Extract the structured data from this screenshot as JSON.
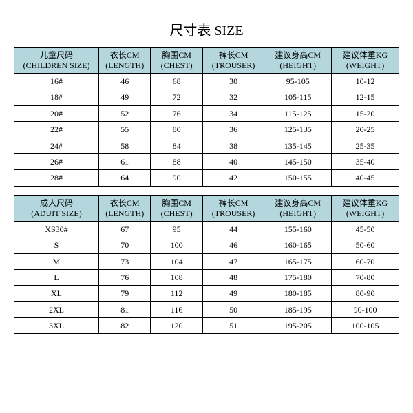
{
  "title": "尺寸表 SIZE",
  "header_bg": "#b3d7dd",
  "children": {
    "header": {
      "size": {
        "cn": "儿童尺码",
        "en": "(CHILDREN SIZE)"
      },
      "length": {
        "cn": "衣长CM",
        "en": "(LENGTH)"
      },
      "chest": {
        "cn": "胸围CM",
        "en": "(CHEST)"
      },
      "trouser": {
        "cn": "裤长CM",
        "en": "(TROUSER)"
      },
      "height": {
        "cn": "建议身高CM",
        "en": "(HEIGHT)"
      },
      "weight": {
        "cn": "建议体重KG",
        "en": "(WEIGHT)"
      }
    },
    "rows": [
      {
        "size": "16#",
        "length": "46",
        "chest": "68",
        "trouser": "30",
        "height": "95-105",
        "weight": "10-12"
      },
      {
        "size": "18#",
        "length": "49",
        "chest": "72",
        "trouser": "32",
        "height": "105-115",
        "weight": "12-15"
      },
      {
        "size": "20#",
        "length": "52",
        "chest": "76",
        "trouser": "34",
        "height": "115-125",
        "weight": "15-20"
      },
      {
        "size": "22#",
        "length": "55",
        "chest": "80",
        "trouser": "36",
        "height": "125-135",
        "weight": "20-25"
      },
      {
        "size": "24#",
        "length": "58",
        "chest": "84",
        "trouser": "38",
        "height": "135-145",
        "weight": "25-35"
      },
      {
        "size": "26#",
        "length": "61",
        "chest": "88",
        "trouser": "40",
        "height": "145-150",
        "weight": "35-40"
      },
      {
        "size": "28#",
        "length": "64",
        "chest": "90",
        "trouser": "42",
        "height": "150-155",
        "weight": "40-45"
      }
    ]
  },
  "adult": {
    "header": {
      "size": {
        "cn": "成人尺码",
        "en": "(ADUIT SIZE)"
      },
      "length": {
        "cn": "衣长CM",
        "en": "(LENGTH)"
      },
      "chest": {
        "cn": "胸围CM",
        "en": "(CHEST)"
      },
      "trouser": {
        "cn": "裤长CM",
        "en": "(TROUSER)"
      },
      "height": {
        "cn": "建议身高CM",
        "en": "(HEIGHT)"
      },
      "weight": {
        "cn": "建议体重KG",
        "en": "(WEIGHT)"
      }
    },
    "rows": [
      {
        "size": "XS30#",
        "length": "67",
        "chest": "95",
        "trouser": "44",
        "height": "155-160",
        "weight": "45-50"
      },
      {
        "size": "S",
        "length": "70",
        "chest": "100",
        "trouser": "46",
        "height": "160-165",
        "weight": "50-60"
      },
      {
        "size": "M",
        "length": "73",
        "chest": "104",
        "trouser": "47",
        "height": "165-175",
        "weight": "60-70"
      },
      {
        "size": "L",
        "length": "76",
        "chest": "108",
        "trouser": "48",
        "height": "175-180",
        "weight": "70-80"
      },
      {
        "size": "XL",
        "length": "79",
        "chest": "112",
        "trouser": "49",
        "height": "180-185",
        "weight": "80-90"
      },
      {
        "size": "2XL",
        "length": "81",
        "chest": "116",
        "trouser": "50",
        "height": "185-195",
        "weight": "90-100"
      },
      {
        "size": "3XL",
        "length": "82",
        "chest": "120",
        "trouser": "51",
        "height": "195-205",
        "weight": "100-105"
      }
    ]
  }
}
